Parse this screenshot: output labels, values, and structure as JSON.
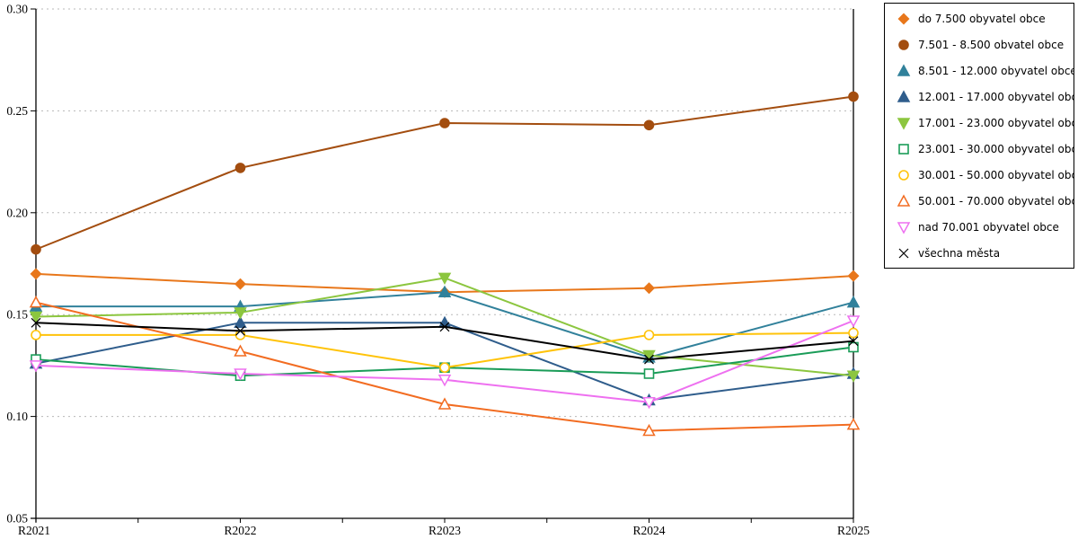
{
  "chart_data": {
    "type": "line",
    "title": "",
    "xlabel": "",
    "ylabel": "",
    "categories": [
      "R2021",
      "R2022",
      "R2023",
      "R2024",
      "R2025"
    ],
    "y_ticks": [
      0.05,
      0.1,
      0.15,
      0.2,
      0.25,
      0.3
    ],
    "ylim": [
      0.05,
      0.3
    ],
    "grid": "horizontal-dotted",
    "gridline_color": "#b8b8b8",
    "axis_color": "#000000",
    "background": "#ffffff",
    "legend_position": "right",
    "series": [
      {
        "name": "do 7.500 obyvatel obce",
        "color": "#E8771B",
        "marker": "diamond",
        "fill": true,
        "values": [
          0.17,
          0.165,
          0.161,
          0.163,
          0.169
        ]
      },
      {
        "name": "7.501 - 8.500 obvatel obce",
        "color": "#A34D0F",
        "marker": "circle",
        "fill": true,
        "values": [
          0.182,
          0.222,
          0.244,
          0.243,
          0.257
        ]
      },
      {
        "name": "8.501 - 12.000 obyvatel obce",
        "color": "#31819B",
        "marker": "triangle-up",
        "fill": true,
        "values": [
          0.154,
          0.154,
          0.161,
          0.129,
          0.156
        ]
      },
      {
        "name": "12.001 - 17.000 obyvatel obc...",
        "color": "#2F5D8C",
        "marker": "triangle-up",
        "fill": true,
        "values": [
          0.126,
          0.146,
          0.146,
          0.108,
          0.121
        ]
      },
      {
        "name": "17.001 - 23.000 obyvatel obc...",
        "color": "#8CC63F",
        "marker": "triangle-down",
        "fill": true,
        "values": [
          0.149,
          0.151,
          0.168,
          0.13,
          0.12
        ]
      },
      {
        "name": "23.001 - 30.000 obyvatel obc...",
        "color": "#1A9C58",
        "marker": "square",
        "fill": false,
        "values": [
          0.128,
          0.12,
          0.124,
          0.121,
          0.134
        ]
      },
      {
        "name": "30.001 - 50.000 obyvatel obc...",
        "color": "#FFC30A",
        "marker": "circle",
        "fill": false,
        "values": [
          0.14,
          0.14,
          0.124,
          0.14,
          0.141
        ]
      },
      {
        "name": "50.001 - 70.000 obyvatel obc...",
        "color": "#F26C21",
        "marker": "triangle-up",
        "fill": false,
        "values": [
          0.156,
          0.132,
          0.106,
          0.093,
          0.096
        ]
      },
      {
        "name": "nad 70.001 obyvatel obce",
        "color": "#EE70F0",
        "marker": "triangle-down",
        "fill": false,
        "values": [
          0.125,
          0.121,
          0.118,
          0.107,
          0.147
        ]
      },
      {
        "name": "všechna města",
        "color": "#000000",
        "marker": "x",
        "fill": false,
        "values": [
          0.146,
          0.142,
          0.144,
          0.128,
          0.137
        ]
      }
    ]
  }
}
